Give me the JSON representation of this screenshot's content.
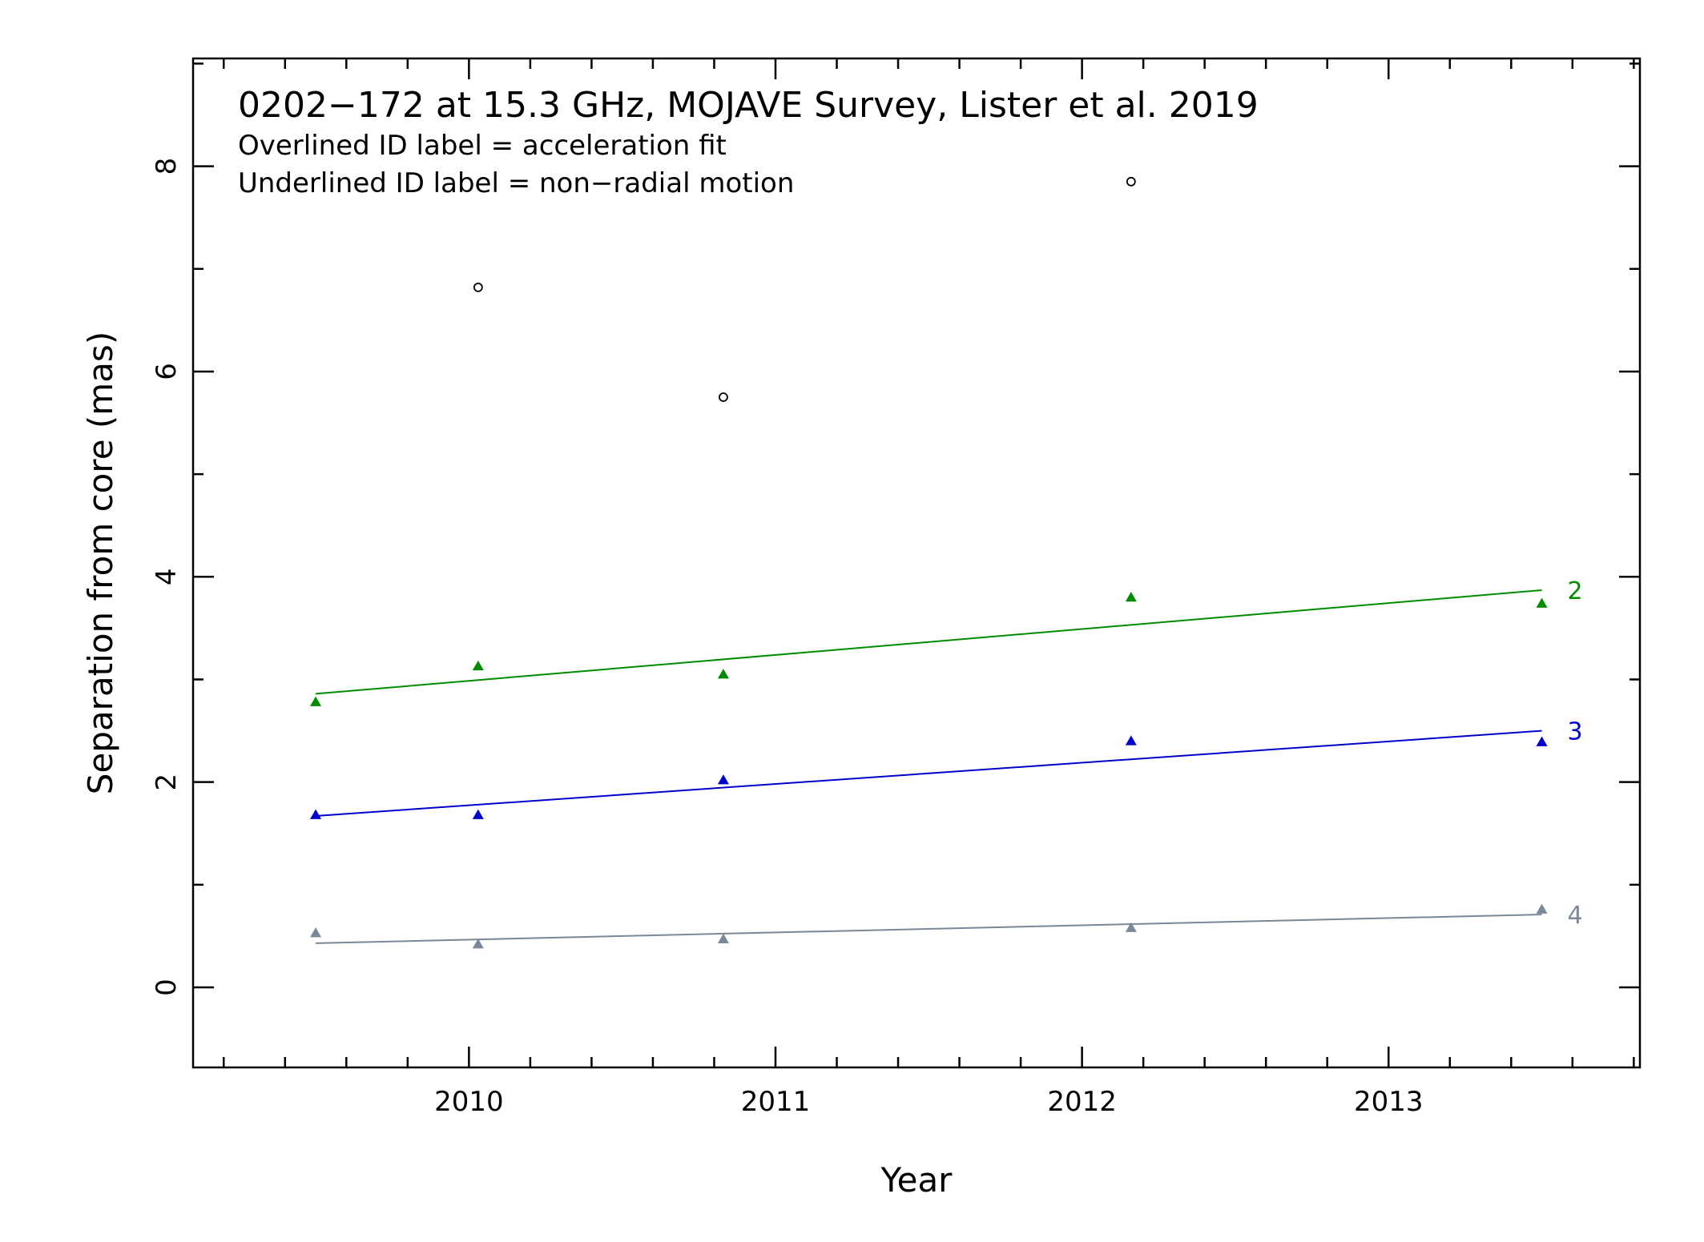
{
  "chart_data": {
    "type": "scatter",
    "title": "0202−172 at 15.3 GHz, MOJAVE Survey, Lister et al. 2019",
    "subtitle_lines": [
      "Overlined ID label = acceleration fit",
      "Underlined ID label = non−radial motion"
    ],
    "xlabel": "Year",
    "ylabel": "Separation from core (mas)",
    "xlim": [
      2009.1,
      2013.82
    ],
    "ylim": [
      -0.78,
      9.05
    ],
    "x_ticks": [
      2010,
      2011,
      2012,
      2013
    ],
    "x_tick_labels": [
      "2010",
      "2011",
      "2012",
      "2013"
    ],
    "y_ticks": [
      0,
      2,
      4,
      6,
      8
    ],
    "y_tick_labels": [
      "0",
      "2",
      "4",
      "6",
      "8"
    ],
    "x_minor_step": 0.2,
    "y_minor_step": 1,
    "grid": false,
    "series": [
      {
        "name": "2",
        "color": "#008c00",
        "marker": "triangle",
        "points": [
          [
            2009.5,
            2.78
          ],
          [
            2010.03,
            3.13
          ],
          [
            2010.83,
            3.05
          ],
          [
            2012.16,
            3.8
          ],
          [
            2013.5,
            3.74
          ]
        ],
        "fit": [
          [
            2009.5,
            2.86
          ],
          [
            2013.5,
            3.87
          ]
        ]
      },
      {
        "name": "3",
        "color": "#0000cc",
        "marker": "triangle",
        "points": [
          [
            2009.5,
            1.68
          ],
          [
            2010.03,
            1.68
          ],
          [
            2010.83,
            2.02
          ],
          [
            2012.16,
            2.4
          ],
          [
            2013.5,
            2.39
          ]
        ],
        "fit": [
          [
            2009.5,
            1.67
          ],
          [
            2013.5,
            2.5
          ]
        ]
      },
      {
        "name": "4",
        "color": "#7a8899",
        "marker": "triangle",
        "points": [
          [
            2009.5,
            0.53
          ],
          [
            2010.03,
            0.42
          ],
          [
            2010.83,
            0.47
          ],
          [
            2012.16,
            0.58
          ],
          [
            2013.5,
            0.76
          ]
        ],
        "fit": [
          [
            2009.5,
            0.43
          ],
          [
            2013.5,
            0.71
          ]
        ]
      },
      {
        "name": "",
        "color": "#000000",
        "marker": "open-circle",
        "points": [
          [
            2010.03,
            6.82
          ],
          [
            2010.83,
            5.75
          ],
          [
            2012.16,
            7.85
          ]
        ],
        "fit": []
      }
    ]
  }
}
